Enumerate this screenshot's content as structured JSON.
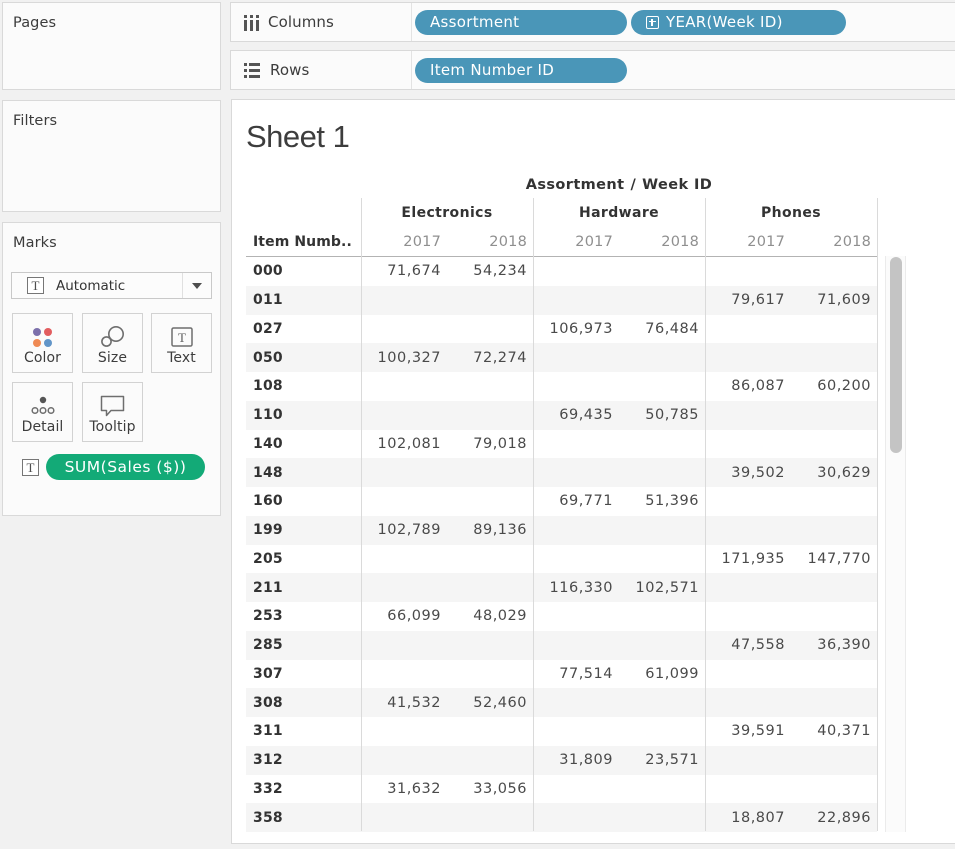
{
  "left_panel": {
    "pages": {
      "title": "Pages"
    },
    "filters": {
      "title": "Filters"
    },
    "marks": {
      "title": "Marks",
      "mark_type": "Automatic",
      "buttons": [
        {
          "label": "Color",
          "icon": "color-dots-icon"
        },
        {
          "label": "Size",
          "icon": "size-circles-icon"
        },
        {
          "label": "Text",
          "icon": "text-t-icon"
        },
        {
          "label": "Detail",
          "icon": "detail-dots-icon"
        },
        {
          "label": "Tooltip",
          "icon": "tooltip-bubble-icon"
        }
      ],
      "encoding_pill": {
        "label": "SUM(Sales ($))",
        "color": "#13aa77",
        "icon": "text-t-icon"
      }
    }
  },
  "shelves": {
    "columns": {
      "label": "Columns",
      "pills": [
        {
          "label": "Assortment",
          "has_expand_icon": false
        },
        {
          "label": "YEAR(Week ID)",
          "has_expand_icon": true
        }
      ]
    },
    "rows": {
      "label": "Rows",
      "pills": [
        {
          "label": "Item Number ID",
          "has_expand_icon": false
        }
      ]
    }
  },
  "pill_color_dimension": "#4a96b8",
  "sheet": {
    "title": "Sheet 1"
  },
  "chart_data": {
    "type": "table",
    "title": "Sheet 1",
    "field_label": "Assortment / Week ID",
    "field_label_parts": [
      "Assortment",
      "/",
      "Week ID"
    ],
    "row_header": "Item Numb..",
    "groups": [
      {
        "name": "Electronics",
        "years": [
          "2017",
          "2018"
        ]
      },
      {
        "name": "Hardware",
        "years": [
          "2017",
          "2018"
        ]
      },
      {
        "name": "Phones",
        "years": [
          "2017",
          "2018"
        ]
      }
    ],
    "rows": [
      {
        "item": "000",
        "values": [
          "71,674",
          "54,234",
          "",
          "",
          "",
          ""
        ]
      },
      {
        "item": "011",
        "values": [
          "",
          "",
          "",
          "",
          "79,617",
          "71,609"
        ]
      },
      {
        "item": "027",
        "values": [
          "",
          "",
          "106,973",
          "76,484",
          "",
          ""
        ]
      },
      {
        "item": "050",
        "values": [
          "100,327",
          "72,274",
          "",
          "",
          "",
          ""
        ]
      },
      {
        "item": "108",
        "values": [
          "",
          "",
          "",
          "",
          "86,087",
          "60,200"
        ]
      },
      {
        "item": "110",
        "values": [
          "",
          "",
          "69,435",
          "50,785",
          "",
          ""
        ]
      },
      {
        "item": "140",
        "values": [
          "102,081",
          "79,018",
          "",
          "",
          "",
          ""
        ]
      },
      {
        "item": "148",
        "values": [
          "",
          "",
          "",
          "",
          "39,502",
          "30,629"
        ]
      },
      {
        "item": "160",
        "values": [
          "",
          "",
          "69,771",
          "51,396",
          "",
          ""
        ]
      },
      {
        "item": "199",
        "values": [
          "102,789",
          "89,136",
          "",
          "",
          "",
          ""
        ]
      },
      {
        "item": "205",
        "values": [
          "",
          "",
          "",
          "",
          "171,935",
          "147,770"
        ]
      },
      {
        "item": "211",
        "values": [
          "",
          "",
          "116,330",
          "102,571",
          "",
          ""
        ]
      },
      {
        "item": "253",
        "values": [
          "66,099",
          "48,029",
          "",
          "",
          "",
          ""
        ]
      },
      {
        "item": "285",
        "values": [
          "",
          "",
          "",
          "",
          "47,558",
          "36,390"
        ]
      },
      {
        "item": "307",
        "values": [
          "",
          "",
          "77,514",
          "61,099",
          "",
          ""
        ]
      },
      {
        "item": "308",
        "values": [
          "41,532",
          "52,460",
          "",
          "",
          "",
          ""
        ]
      },
      {
        "item": "311",
        "values": [
          "",
          "",
          "",
          "",
          "39,591",
          "40,371"
        ]
      },
      {
        "item": "312",
        "values": [
          "",
          "",
          "31,809",
          "23,571",
          "",
          ""
        ]
      },
      {
        "item": "332",
        "values": [
          "31,632",
          "33,056",
          "",
          "",
          "",
          ""
        ]
      },
      {
        "item": "358",
        "values": [
          "",
          "",
          "",
          "",
          "18,807",
          "22,896"
        ]
      }
    ]
  }
}
